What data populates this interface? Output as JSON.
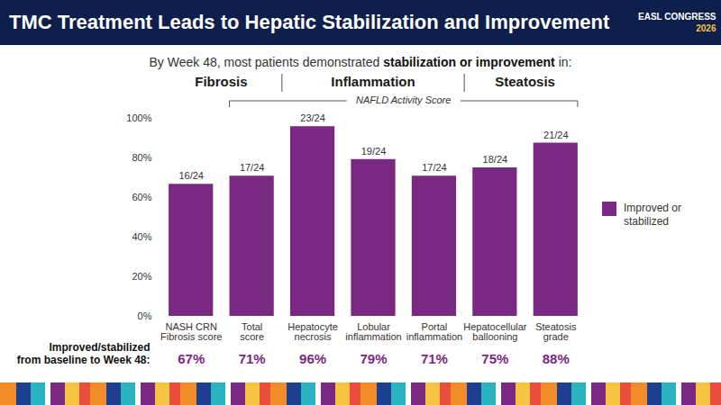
{
  "chart_data": {
    "type": "bar",
    "title": "TMC Treatment Leads to Hepatic Stabilization and Improvement",
    "subtitle": "By Week 48, most patients demonstrated stabilization or improvement in:",
    "subtitle_emphasis": "stabilization or improvement",
    "categories": [
      "NASH CRN\nFibrosis score",
      "Total\nscore",
      "Hepatocyte\nnecrosis",
      "Lobular\ninflammation",
      "Portal\ninflammation",
      "Hepatocellular\nballooning",
      "Steatosis\ngrade"
    ],
    "series": [
      {
        "name": "Improved or stabilized",
        "color": "#7a2983",
        "values": [
          66.7,
          70.8,
          95.8,
          79.2,
          70.8,
          75,
          87.5
        ],
        "value_labels": [
          "16/24",
          "17/24",
          "23/24",
          "19/24",
          "17/24",
          "18/24",
          "21/24"
        ]
      }
    ],
    "ylim": [
      0,
      100
    ],
    "yticks": [
      {
        "value": 0,
        "label": "0%"
      },
      {
        "value": 20,
        "label": "20%"
      },
      {
        "value": 40,
        "label": "40%"
      },
      {
        "value": 60,
        "label": "60%"
      },
      {
        "value": 80,
        "label": "80%"
      },
      {
        "value": 100,
        "label": "100%"
      }
    ],
    "grid": false,
    "legend": "right",
    "data_labels": true,
    "groups": [
      {
        "label": "Fibrosis",
        "categories": [
          "NASH CRN\nFibrosis score",
          "Total\nscore"
        ]
      },
      {
        "label": "Inflammation",
        "categories": [
          "Hepatocyte\nnecrosis",
          "Lobular\ninflammation",
          "Portal\ninflammation"
        ]
      },
      {
        "label": "Steatosis",
        "categories": [
          "Hepatocellular\nballooning",
          "Steatosis\ngrade"
        ]
      }
    ],
    "bracket": {
      "label": "NAFLD Activity Score",
      "categories": [
        "Total\nscore",
        "Hepatocyte\nnecrosis",
        "Lobular\ninflammation",
        "Portal\ninflammation",
        "Hepatocellular\nballooning",
        "Steatosis\ngrade"
      ]
    },
    "summary_row": {
      "label": "Improved/stabilized\nfrom baseline to Week 48:",
      "labels": [
        "67%",
        "71%",
        "96%",
        "79%",
        "71%",
        "75%",
        "88%"
      ]
    }
  },
  "logo": {
    "name": "EASL CONGRESS",
    "year": "2026"
  }
}
